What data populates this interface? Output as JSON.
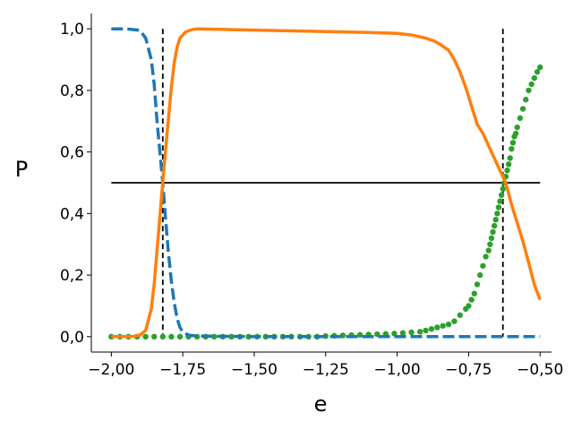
{
  "chart_data": {
    "type": "line",
    "xlabel": "e",
    "ylabel": "P",
    "xlim": [
      -2.07,
      -0.46
    ],
    "ylim": [
      -0.05,
      1.05
    ],
    "xticks": [
      -2.0,
      -1.75,
      -1.5,
      -1.25,
      -1.0,
      -0.75,
      -0.5
    ],
    "xtick_labels": [
      "−2,00",
      "−1,75",
      "−1,50",
      "−1,25",
      "−1,00",
      "−0,75",
      "−0,50"
    ],
    "yticks": [
      0.0,
      0.2,
      0.4,
      0.6,
      0.8,
      1.0
    ],
    "ytick_labels": [
      "0,0",
      "0,2",
      "0,4",
      "0,6",
      "0,8",
      "1,0"
    ],
    "grid": false,
    "legend": "none",
    "series": [
      {
        "style": "dashed",
        "color": "#1f77b4",
        "x": [
          -2.0,
          -1.95,
          -1.9,
          -1.88,
          -1.86,
          -1.85,
          -1.84,
          -1.83,
          -1.82,
          -1.81,
          -1.8,
          -1.79,
          -1.78,
          -1.77,
          -1.76,
          -1.75,
          -1.73,
          -1.7,
          -1.5,
          -1.25,
          -1.0,
          -0.75,
          -0.5
        ],
        "y": [
          1.0,
          1.0,
          0.995,
          0.97,
          0.9,
          0.82,
          0.7,
          0.6,
          0.5,
          0.38,
          0.27,
          0.18,
          0.11,
          0.06,
          0.03,
          0.015,
          0.005,
          0.002,
          0.0,
          0.0,
          0.0,
          0.0,
          0.0
        ]
      },
      {
        "style": "solid",
        "color": "#ff7f0e",
        "x": [
          -2.0,
          -1.93,
          -1.9,
          -1.88,
          -1.86,
          -1.85,
          -1.84,
          -1.83,
          -1.82,
          -1.81,
          -1.8,
          -1.79,
          -1.78,
          -1.77,
          -1.76,
          -1.74,
          -1.72,
          -1.7,
          -1.6,
          -1.5,
          -1.4,
          -1.3,
          -1.2,
          -1.1,
          -1.0,
          -0.95,
          -0.9,
          -0.87,
          -0.85,
          -0.82,
          -0.8,
          -0.78,
          -0.76,
          -0.74,
          -0.72,
          -0.7,
          -0.68,
          -0.66,
          -0.64,
          -0.62,
          -0.6,
          -0.58,
          -0.56,
          -0.54,
          -0.52,
          -0.5
        ],
        "y": [
          0.0,
          0.0,
          0.005,
          0.02,
          0.09,
          0.17,
          0.28,
          0.39,
          0.5,
          0.61,
          0.71,
          0.81,
          0.89,
          0.94,
          0.97,
          0.99,
          0.997,
          1.0,
          0.998,
          0.996,
          0.994,
          0.992,
          0.99,
          0.988,
          0.985,
          0.98,
          0.97,
          0.96,
          0.95,
          0.93,
          0.9,
          0.86,
          0.81,
          0.75,
          0.69,
          0.66,
          0.62,
          0.58,
          0.54,
          0.5,
          0.43,
          0.37,
          0.31,
          0.24,
          0.17,
          0.12
        ]
      },
      {
        "style": "dots",
        "color": "#2ca02c",
        "x": [
          -2.0,
          -1.97,
          -1.94,
          -1.91,
          -1.88,
          -1.85,
          -1.82,
          -1.79,
          -1.76,
          -1.73,
          -1.7,
          -1.67,
          -1.64,
          -1.61,
          -1.58,
          -1.55,
          -1.52,
          -1.49,
          -1.46,
          -1.43,
          -1.4,
          -1.37,
          -1.34,
          -1.31,
          -1.28,
          -1.25,
          -1.22,
          -1.19,
          -1.16,
          -1.13,
          -1.1,
          -1.07,
          -1.04,
          -1.01,
          -0.98,
          -0.95,
          -0.92,
          -0.9,
          -0.88,
          -0.86,
          -0.84,
          -0.82,
          -0.8,
          -0.78,
          -0.76,
          -0.75,
          -0.74,
          -0.73,
          -0.72,
          -0.71,
          -0.7,
          -0.69,
          -0.68,
          -0.675,
          -0.67,
          -0.665,
          -0.66,
          -0.655,
          -0.65,
          -0.645,
          -0.64,
          -0.635,
          -0.63,
          -0.625,
          -0.62,
          -0.615,
          -0.61,
          -0.605,
          -0.6,
          -0.595,
          -0.59,
          -0.585,
          -0.58,
          -0.57,
          -0.56,
          -0.55,
          -0.54,
          -0.53,
          -0.52,
          -0.51,
          -0.5
        ],
        "y": [
          0.0,
          0.0,
          0.0,
          0.0,
          0.0,
          0.0,
          0.0,
          0.0,
          0.0,
          0.0,
          0.0,
          0.0,
          0.0,
          0.0,
          0.0,
          0.0,
          0.0,
          0.0,
          0.0,
          0.0,
          0.0,
          0.0,
          0.0,
          0.0,
          0.0,
          0.002,
          0.003,
          0.004,
          0.005,
          0.006,
          0.007,
          0.008,
          0.009,
          0.01,
          0.012,
          0.014,
          0.016,
          0.02,
          0.025,
          0.03,
          0.035,
          0.04,
          0.05,
          0.07,
          0.09,
          0.1,
          0.12,
          0.14,
          0.17,
          0.2,
          0.23,
          0.26,
          0.28,
          0.3,
          0.32,
          0.34,
          0.36,
          0.38,
          0.4,
          0.42,
          0.44,
          0.46,
          0.48,
          0.5,
          0.52,
          0.54,
          0.56,
          0.58,
          0.61,
          0.63,
          0.65,
          0.66,
          0.68,
          0.71,
          0.74,
          0.77,
          0.8,
          0.82,
          0.84,
          0.86,
          0.875
        ]
      }
    ],
    "reference_lines": [
      {
        "orientation": "horizontal",
        "y": 0.5,
        "x_from": -2.0,
        "x_to": -0.5,
        "style": "solid",
        "color": "#000000"
      },
      {
        "orientation": "vertical",
        "x": -1.82,
        "style": "dashed",
        "color": "#000000"
      },
      {
        "orientation": "vertical",
        "x": -0.63,
        "style": "dashed",
        "color": "#000000"
      }
    ]
  }
}
